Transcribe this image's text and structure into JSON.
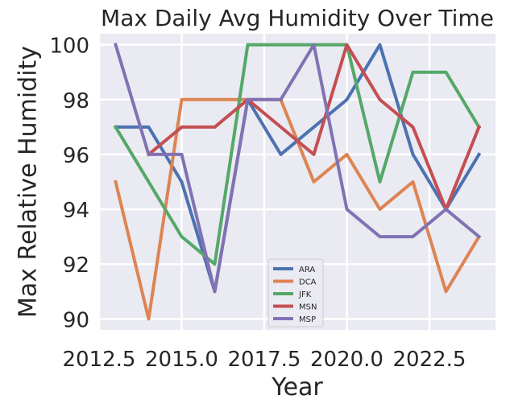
{
  "chart_data": {
    "type": "line",
    "title": "Max Daily Avg Humidity Over Time",
    "xlabel": "Year",
    "ylabel": "Max Relative Humidity",
    "xlim": [
      2012.5,
      2024.5
    ],
    "ylim": [
      89.6,
      100.4
    ],
    "x_ticks": [
      2012.5,
      2015.0,
      2017.5,
      2020.0,
      2022.5
    ],
    "x_tick_labels": [
      "2012.5",
      "2015.0",
      "2017.5",
      "2020.0",
      "2022.5"
    ],
    "y_ticks": [
      90,
      92,
      94,
      96,
      98,
      100
    ],
    "y_tick_labels": [
      "90",
      "92",
      "94",
      "96",
      "98",
      "100"
    ],
    "grid": true,
    "legend_position": "bottom-center",
    "series": [
      {
        "name": "ARA",
        "color": "#4c72b0",
        "x": [
          2013,
          2014,
          2015,
          2016,
          2017,
          2018,
          2019,
          2020,
          2021,
          2022,
          2023,
          2024
        ],
        "values": [
          97,
          97,
          95,
          91,
          98,
          96,
          97,
          98,
          100,
          96,
          94,
          96
        ]
      },
      {
        "name": "DCA",
        "color": "#dd8452",
        "x": [
          2013,
          2014,
          2015,
          2016,
          2017,
          2018,
          2019,
          2020,
          2021,
          2022,
          2023,
          2024
        ],
        "values": [
          95,
          90,
          98,
          98,
          98,
          98,
          95,
          96,
          94,
          95,
          91,
          93
        ]
      },
      {
        "name": "JFK",
        "color": "#55a868",
        "x": [
          2013,
          2015,
          2016,
          2017,
          2018,
          2019,
          2020,
          2021,
          2022,
          2023,
          2024
        ],
        "values": [
          97,
          93,
          92,
          100,
          100,
          100,
          100,
          95,
          99,
          99,
          97
        ]
      },
      {
        "name": "MSN",
        "color": "#c44e52",
        "x": [
          2014,
          2015,
          2016,
          2017,
          2019,
          2020,
          2021,
          2022,
          2023,
          2024
        ],
        "values": [
          96,
          97,
          97,
          98,
          96,
          100,
          98,
          97,
          94,
          97
        ]
      },
      {
        "name": "MSP",
        "color": "#8172b3",
        "x": [
          2013,
          2014,
          2015,
          2016,
          2017,
          2018,
          2019,
          2020,
          2021,
          2022,
          2023,
          2024
        ],
        "values": [
          100,
          96,
          96,
          91,
          98,
          98,
          100,
          94,
          93,
          93,
          94,
          93
        ]
      }
    ]
  }
}
